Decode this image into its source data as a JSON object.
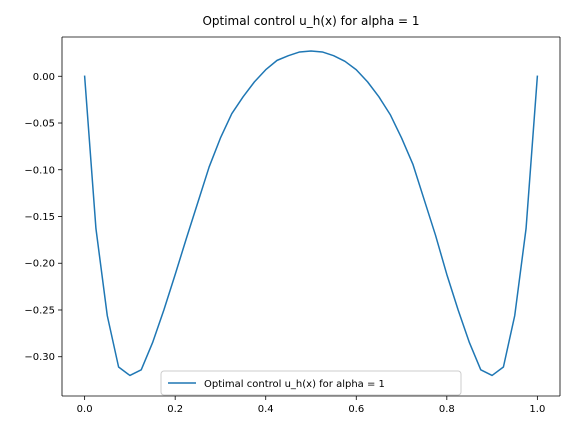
{
  "chart_data": {
    "type": "line",
    "title": "Optimal control u_h(x) for alpha = 1",
    "xlabel": "",
    "ylabel": "",
    "xlim": [
      -0.05,
      1.05
    ],
    "ylim": [
      -0.342,
      0.042
    ],
    "xticks": [
      0.0,
      0.2,
      0.4,
      0.6,
      0.8,
      1.0
    ],
    "xtick_labels": [
      "0.0",
      "0.2",
      "0.4",
      "0.6",
      "0.8",
      "1.0"
    ],
    "yticks": [
      0.0,
      -0.05,
      -0.1,
      -0.15,
      -0.2,
      -0.25,
      -0.3
    ],
    "ytick_labels": [
      "0.00",
      "−0.05",
      "−0.10",
      "−0.15",
      "−0.20",
      "−0.25",
      "−0.30"
    ],
    "grid": false,
    "legend_position": "lower-center",
    "series": [
      {
        "name": "Optimal control u_h(x) for alpha = 1",
        "color": "#1f77b4",
        "x": [
          0.0,
          0.025,
          0.05,
          0.075,
          0.1,
          0.125,
          0.15,
          0.175,
          0.2,
          0.225,
          0.25,
          0.275,
          0.3,
          0.325,
          0.35,
          0.375,
          0.4,
          0.425,
          0.45,
          0.475,
          0.5,
          0.525,
          0.55,
          0.575,
          0.6,
          0.625,
          0.65,
          0.675,
          0.7,
          0.725,
          0.75,
          0.775,
          0.8,
          0.825,
          0.85,
          0.875,
          0.9,
          0.925,
          0.95,
          0.975,
          1.0
        ],
        "y": [
          0.0,
          -0.163,
          -0.256,
          -0.311,
          -0.32,
          -0.314,
          -0.285,
          -0.25,
          -0.212,
          -0.173,
          -0.135,
          -0.097,
          -0.066,
          -0.04,
          -0.022,
          -0.006,
          0.007,
          0.017,
          0.022,
          0.026,
          0.027,
          0.026,
          0.022,
          0.016,
          0.007,
          -0.006,
          -0.022,
          -0.041,
          -0.066,
          -0.094,
          -0.132,
          -0.17,
          -0.212,
          -0.25,
          -0.285,
          -0.314,
          -0.32,
          -0.311,
          -0.256,
          -0.163,
          0.0
        ]
      }
    ]
  }
}
